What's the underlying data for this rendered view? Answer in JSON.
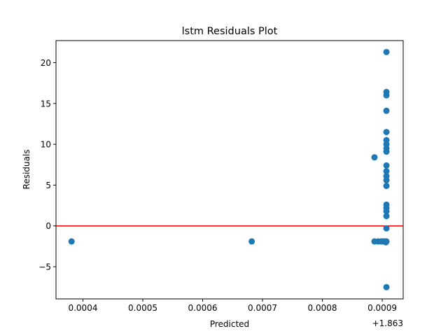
{
  "chart_data": {
    "type": "scatter",
    "title": "lstm Residuals Plot",
    "xlabel": "Predicted",
    "ylabel": "Residuals",
    "x_offset_label": "+1.863",
    "xlim": [
      0.000355,
      0.000935
    ],
    "ylim": [
      -8.94,
      22.7
    ],
    "x_ticks": [
      0.0004,
      0.0005,
      0.0006,
      0.0007,
      0.0008,
      0.0009
    ],
    "x_tick_labels": [
      "0.0004",
      "0.0005",
      "0.0006",
      "0.0007",
      "0.0008",
      "0.0009"
    ],
    "y_ticks": [
      -5,
      0,
      5,
      10,
      15,
      20
    ],
    "y_tick_labels": [
      "−5",
      "0",
      "5",
      "10",
      "15",
      "20"
    ],
    "grid": false,
    "reference_line": {
      "y": 0,
      "color": "#ff0000"
    },
    "marker_color": "#1f77b4",
    "points": [
      {
        "x": 0.000381,
        "y": -1.9
      },
      {
        "x": 0.000682,
        "y": -1.9
      },
      {
        "x": 0.000887,
        "y": 8.4
      },
      {
        "x": 0.000887,
        "y": -1.9
      },
      {
        "x": 0.000893,
        "y": -1.9
      },
      {
        "x": 0.000898,
        "y": -1.9
      },
      {
        "x": 0.000902,
        "y": -1.9
      },
      {
        "x": 0.000904,
        "y": -1.9
      },
      {
        "x": 0.000906,
        "y": -2.0
      },
      {
        "x": 0.000907,
        "y": 21.3
      },
      {
        "x": 0.000907,
        "y": 16.4
      },
      {
        "x": 0.000907,
        "y": 16.0
      },
      {
        "x": 0.000907,
        "y": 14.1
      },
      {
        "x": 0.000907,
        "y": 11.5
      },
      {
        "x": 0.000907,
        "y": 10.5
      },
      {
        "x": 0.000907,
        "y": 10.0
      },
      {
        "x": 0.000907,
        "y": 9.5
      },
      {
        "x": 0.000907,
        "y": 9.1
      },
      {
        "x": 0.000907,
        "y": 7.4
      },
      {
        "x": 0.000907,
        "y": 6.7
      },
      {
        "x": 0.000907,
        "y": 6.1
      },
      {
        "x": 0.000907,
        "y": 5.6
      },
      {
        "x": 0.000907,
        "y": 4.9
      },
      {
        "x": 0.000907,
        "y": 2.6
      },
      {
        "x": 0.000907,
        "y": 2.2
      },
      {
        "x": 0.000907,
        "y": 1.8
      },
      {
        "x": 0.000907,
        "y": 1.2
      },
      {
        "x": 0.000907,
        "y": -0.3
      },
      {
        "x": 0.000907,
        "y": -1.9
      },
      {
        "x": 0.000907,
        "y": -7.5
      }
    ]
  }
}
